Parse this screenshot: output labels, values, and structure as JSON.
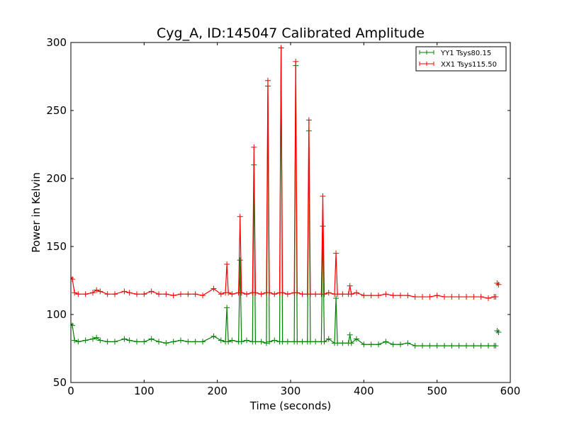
{
  "chart_data": {
    "type": "line",
    "title": "Cyg_A, ID:145047 Calibrated Amplitude",
    "xlabel": "Time (seconds)",
    "ylabel": "Power in Kelvin",
    "xlim": [
      0,
      600
    ],
    "ylim": [
      50,
      300
    ],
    "xticks": [
      0,
      100,
      200,
      300,
      400,
      500,
      600
    ],
    "yticks": [
      50,
      100,
      150,
      200,
      250,
      300
    ],
    "grid": false,
    "legend_position": "top-right",
    "x": [
      0,
      2,
      5,
      10,
      20,
      30,
      35,
      40,
      50,
      60,
      73,
      80,
      90,
      100,
      110,
      120,
      130,
      140,
      150,
      160,
      170,
      180,
      195,
      205,
      211,
      213,
      215,
      220,
      229,
      231,
      233,
      240,
      248,
      250,
      252,
      260,
      267,
      269,
      271,
      278,
      285,
      287,
      289,
      296,
      305,
      307,
      309,
      316,
      323,
      325,
      327,
      334,
      342,
      344,
      346,
      352,
      360,
      362,
      364,
      371,
      379,
      381,
      383,
      390,
      400,
      410,
      420,
      430,
      440,
      450,
      460,
      470,
      480,
      490,
      500,
      510,
      520,
      530,
      540,
      550,
      560,
      570,
      578,
      580,
      582,
      584
    ],
    "series": [
      {
        "name": "YY1 Tsys80.15",
        "color": "#008000",
        "values": [
          93,
          92,
          81,
          80,
          81,
          82,
          83,
          81,
          80,
          80,
          82,
          81,
          80,
          80,
          82,
          80,
          79,
          80,
          81,
          80,
          80,
          80,
          84,
          81,
          80,
          105,
          80,
          81,
          80,
          140,
          80,
          81,
          80,
          210,
          80,
          80,
          79,
          268,
          80,
          81,
          80,
          296,
          80,
          80,
          80,
          283,
          80,
          80,
          80,
          235,
          80,
          80,
          80,
          165,
          80,
          82,
          79,
          112,
          79,
          79,
          79,
          85,
          79,
          82,
          78,
          78,
          78,
          80,
          78,
          78,
          79,
          77,
          77,
          77,
          77,
          77,
          77,
          77,
          77,
          77,
          77,
          77,
          77,
          77,
          88,
          87
        ]
      },
      {
        "name": "XX1 Tsys115.50",
        "color": "#ff0000",
        "values": [
          127,
          126,
          116,
          115,
          115,
          116,
          118,
          117,
          115,
          115,
          117,
          116,
          115,
          115,
          117,
          115,
          115,
          114,
          115,
          115,
          115,
          114,
          119,
          115,
          116,
          137,
          116,
          115,
          116,
          172,
          116,
          115,
          116,
          223,
          116,
          115,
          116,
          272,
          116,
          115,
          116,
          296,
          116,
          115,
          116,
          286,
          116,
          115,
          115,
          243,
          115,
          115,
          115,
          187,
          115,
          116,
          115,
          145,
          115,
          115,
          115,
          121,
          115,
          116,
          114,
          114,
          114,
          115,
          114,
          114,
          114,
          113,
          113,
          113,
          114,
          113,
          113,
          113,
          113,
          113,
          113,
          112,
          113,
          113,
          123,
          122
        ]
      }
    ]
  }
}
